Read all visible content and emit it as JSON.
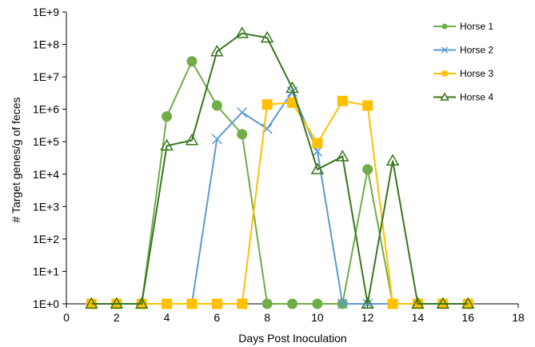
{
  "chart_data": {
    "type": "line",
    "title": "",
    "xlabel": "Days Post Inoculation",
    "ylabel": "# Target genes/g of feces",
    "y_scale": "log",
    "xlim": [
      0,
      18
    ],
    "ylim": [
      1,
      1000000000
    ],
    "x_ticks": [
      "0",
      "2",
      "4",
      "6",
      "8",
      "10",
      "12",
      "14",
      "16",
      "18"
    ],
    "y_ticks": [
      "1E+0",
      "1E+1",
      "1E+2",
      "1E+3",
      "1E+4",
      "1E+5",
      "1E+6",
      "1E+7",
      "1E+8",
      "1E+9"
    ],
    "grid": false,
    "legend_position": "top-right",
    "series": [
      {
        "name": "Horse 1",
        "color": "#70AD47",
        "marker": "circle",
        "x": [
          1,
          2,
          3,
          4,
          5,
          6,
          7,
          8,
          9,
          10,
          11,
          12,
          13,
          14,
          15,
          16
        ],
        "y": [
          1,
          1,
          1,
          600000,
          30000000,
          1300000,
          170000,
          1,
          1,
          1,
          1,
          14000,
          1,
          1,
          1,
          1
        ]
      },
      {
        "name": "Horse 2",
        "color": "#5B9BD5",
        "marker": "x",
        "x": [
          1,
          2,
          3,
          4,
          5,
          6,
          7,
          8,
          9,
          10,
          11,
          12,
          13,
          14,
          15,
          16
        ],
        "y": [
          1,
          1,
          1,
          1,
          1,
          120000,
          800000,
          250000,
          3500000,
          50000,
          1,
          1,
          1,
          1,
          1,
          1
        ]
      },
      {
        "name": "Horse 3",
        "color": "#FFC000",
        "marker": "square",
        "x": [
          1,
          2,
          3,
          4,
          5,
          6,
          7,
          8,
          9,
          10,
          11,
          12,
          13,
          14,
          15,
          16
        ],
        "y": [
          1,
          1,
          1,
          1,
          1,
          1,
          1,
          1400000,
          1600000,
          90000,
          1800000,
          1300000,
          1,
          1,
          1,
          1
        ]
      },
      {
        "name": "Horse 4",
        "color": "#38761D",
        "marker": "triangle",
        "x": [
          1,
          2,
          3,
          4,
          5,
          6,
          7,
          8,
          9,
          10,
          11,
          12,
          13,
          14,
          15,
          16
        ],
        "y": [
          1,
          1,
          1,
          75000,
          110000,
          60000000,
          220000000,
          160000000,
          4500000,
          14000,
          35000,
          1,
          26000,
          1,
          1,
          1
        ]
      }
    ]
  }
}
